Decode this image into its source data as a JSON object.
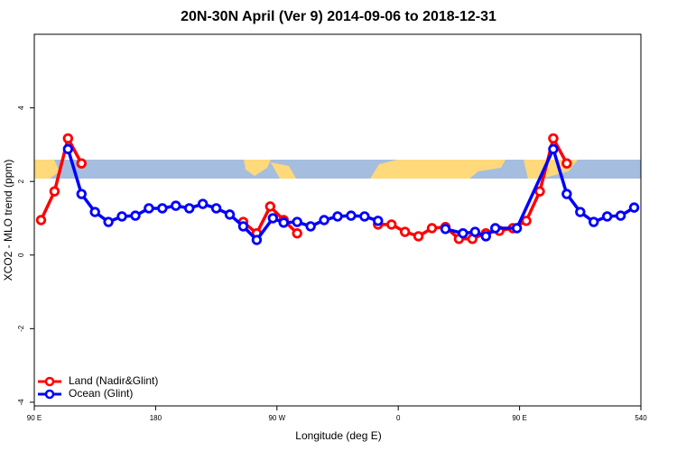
{
  "chart_data": {
    "type": "line",
    "title": "20N-30N April (Ver 9)   2014-09-06 to 2018-12-31",
    "x_label": "Longitude (deg E)",
    "y_label": "XCO2 - MLO trend (ppm)",
    "xlim": [
      90,
      540
    ],
    "xticks": [
      {
        "value": 90,
        "label": "90 E"
      },
      180,
      {
        "value": 270,
        "label": "90 W"
      },
      {
        "value": 360,
        "label": "0"
      },
      {
        "value": 450,
        "label": "90 E"
      },
      540
    ],
    "ylim": [
      -4.1,
      6
    ],
    "yticks": [
      -4,
      -2,
      0,
      2,
      4
    ],
    "legend": "bottom-left",
    "series": [
      {
        "name": "Land (Nadir&Glint)",
        "color": "#ff0000",
        "x": [
          95,
          105,
          115,
          125,
          null,
          245,
          255,
          265,
          275,
          285,
          null,
          345,
          355,
          365,
          375,
          385,
          395,
          405,
          415,
          425,
          435,
          445,
          455,
          465,
          475,
          485
        ],
        "values": [
          0.95,
          1.73,
          3.17,
          2.49,
          null,
          0.9,
          0.59,
          1.32,
          0.95,
          0.59,
          null,
          0.83,
          0.83,
          0.63,
          0.51,
          0.73,
          0.76,
          0.44,
          0.44,
          0.59,
          0.66,
          0.73,
          0.93,
          1.73,
          3.17,
          2.49
        ]
      },
      {
        "name": "Ocean (Glint)",
        "color": "#0000ff",
        "x": [
          115,
          125,
          135,
          145,
          155,
          165,
          175,
          185,
          195,
          205,
          215,
          225,
          235,
          245,
          255,
          267,
          275,
          285,
          295,
          305,
          315,
          325,
          335,
          345,
          null,
          395,
          408,
          417,
          425,
          432,
          448,
          475,
          485,
          495,
          505,
          515,
          525,
          535
        ],
        "values": [
          2.88,
          1.66,
          1.17,
          0.9,
          1.05,
          1.07,
          1.27,
          1.27,
          1.34,
          1.27,
          1.39,
          1.27,
          1.1,
          0.78,
          0.41,
          1.0,
          0.88,
          0.9,
          0.78,
          0.95,
          1.05,
          1.07,
          1.05,
          0.93,
          null,
          0.71,
          0.59,
          0.63,
          0.51,
          0.73,
          0.73,
          2.88,
          1.66,
          1.17,
          0.9,
          1.05,
          1.07,
          1.29
        ]
      }
    ]
  }
}
